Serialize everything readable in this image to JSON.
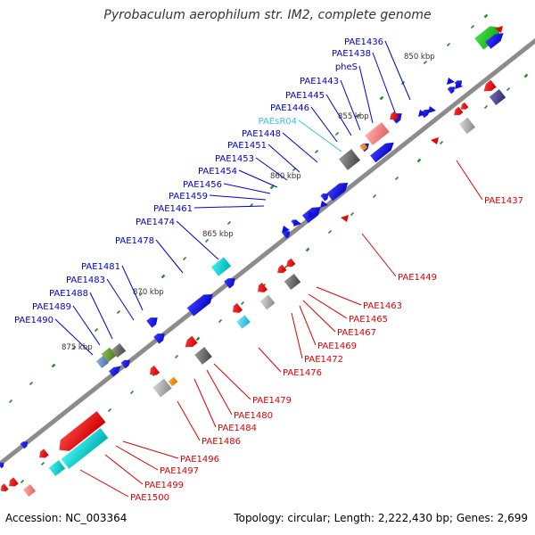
{
  "title": "Pyrobaculum aerophilum str. IM2, complete genome",
  "footer": {
    "accession": "Accession: NC_003364",
    "summary": "Topology: circular; Length: 2,222,430 bp; Genes: 2,699"
  },
  "colors": {
    "backbone": "#8c8c8c",
    "tick_major": "#2e8b2e",
    "tick_minor": "#2e8b2e",
    "forward_label": "#0000cc",
    "reverse_label": "#dd0000",
    "rna_label": "#3cc0e0",
    "ruler_label": "#333333"
  },
  "ruler": {
    "labels": [
      "850 kbp",
      "855 kbp",
      "860 kbp",
      "865 kbp",
      "870 kbp",
      "875 kbp"
    ]
  },
  "forward_labels": [
    "PAE1436",
    "PAE1438",
    "pheS",
    "PAE1443",
    "PAE1445",
    "PAE1446",
    "PAEsR04",
    "PAE1448",
    "PAE1451",
    "PAE1453",
    "PAE1454",
    "PAE1456",
    "PAE1459",
    "PAE1461",
    "PAE1474",
    "PAE1478",
    "PAE1481",
    "PAE1483",
    "PAE1488",
    "PAE1489",
    "PAE1490"
  ],
  "reverse_labels": [
    "PAE1437",
    "PAE1449",
    "PAE1463",
    "PAE1465",
    "PAE1467",
    "PAE1469",
    "PAE1472",
    "PAE1476",
    "PAE1479",
    "PAE1480",
    "PAE1484",
    "PAE1486",
    "PAE1496",
    "PAE1497",
    "PAE1499",
    "PAE1500"
  ]
}
